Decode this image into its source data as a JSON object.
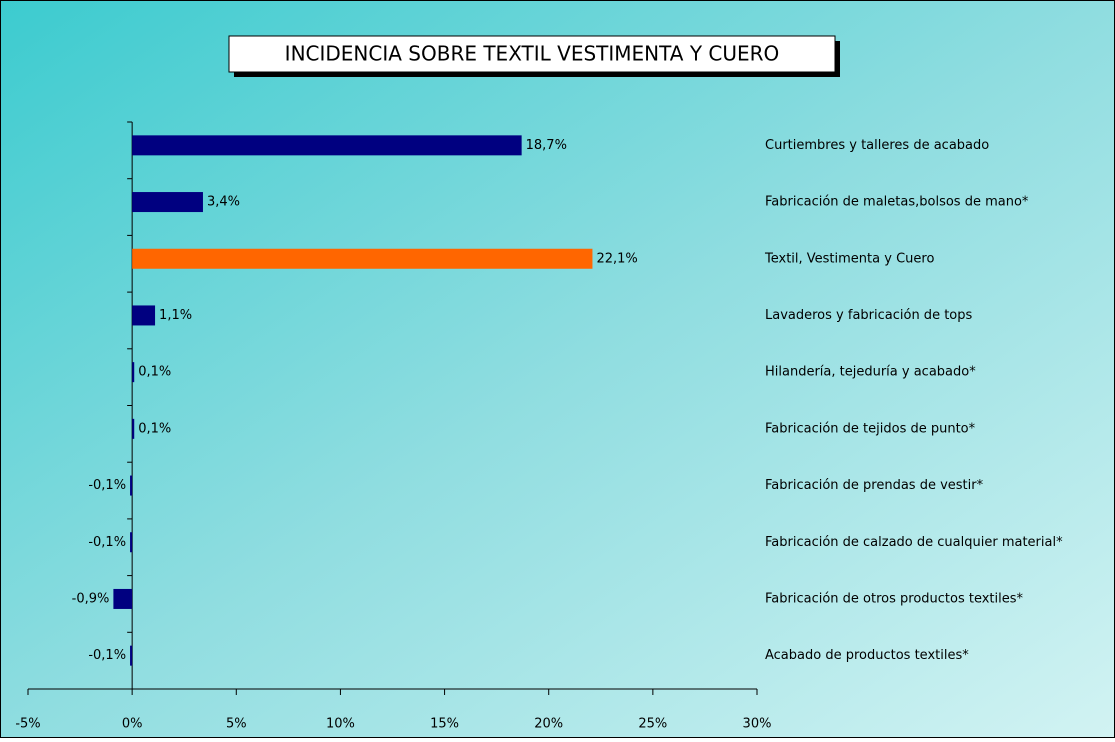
{
  "chart_data": {
    "type": "barh",
    "title": "INCIDENCIA SOBRE TEXTIL VESTIMENTA Y CUERO",
    "categories": [
      "Curtiembres y talleres de acabado",
      "Fabricación de maletas,bolsos de mano*",
      "Textil, Vestimenta y Cuero",
      "Lavaderos y fabricación de tops",
      "Hilandería, tejeduría y acabado*",
      "Fabricación de tejidos de punto*",
      "Fabricación de prendas de vestir*",
      "Fabricación de calzado de cualquier material*",
      "Fabricación de otros productos textiles*",
      "Acabado de productos textiles*"
    ],
    "values": [
      18.7,
      3.4,
      22.1,
      1.1,
      0.1,
      0.1,
      -0.1,
      -0.1,
      -0.9,
      -0.1
    ],
    "value_labels": [
      "18,7%",
      "3,4%",
      "22,1%",
      "1,1%",
      "0,1%",
      "0,1%",
      "-0,1%",
      "-0,1%",
      "-0,9%",
      "-0,1%"
    ],
    "colors": [
      "#000080",
      "#000080",
      "#ff6600",
      "#000080",
      "#000080",
      "#000080",
      "#000080",
      "#000080",
      "#000080",
      "#000080"
    ],
    "xlim": [
      -5,
      30
    ],
    "xticks": [
      {
        "value": -5,
        "label": "-5%"
      },
      {
        "value": 0,
        "label": "0%"
      },
      {
        "value": 5,
        "label": "5%"
      },
      {
        "value": 10,
        "label": "10%"
      },
      {
        "value": 15,
        "label": "15%"
      },
      {
        "value": 20,
        "label": "20%"
      },
      {
        "value": 25,
        "label": "25%"
      },
      {
        "value": 30,
        "label": "30%"
      }
    ]
  }
}
